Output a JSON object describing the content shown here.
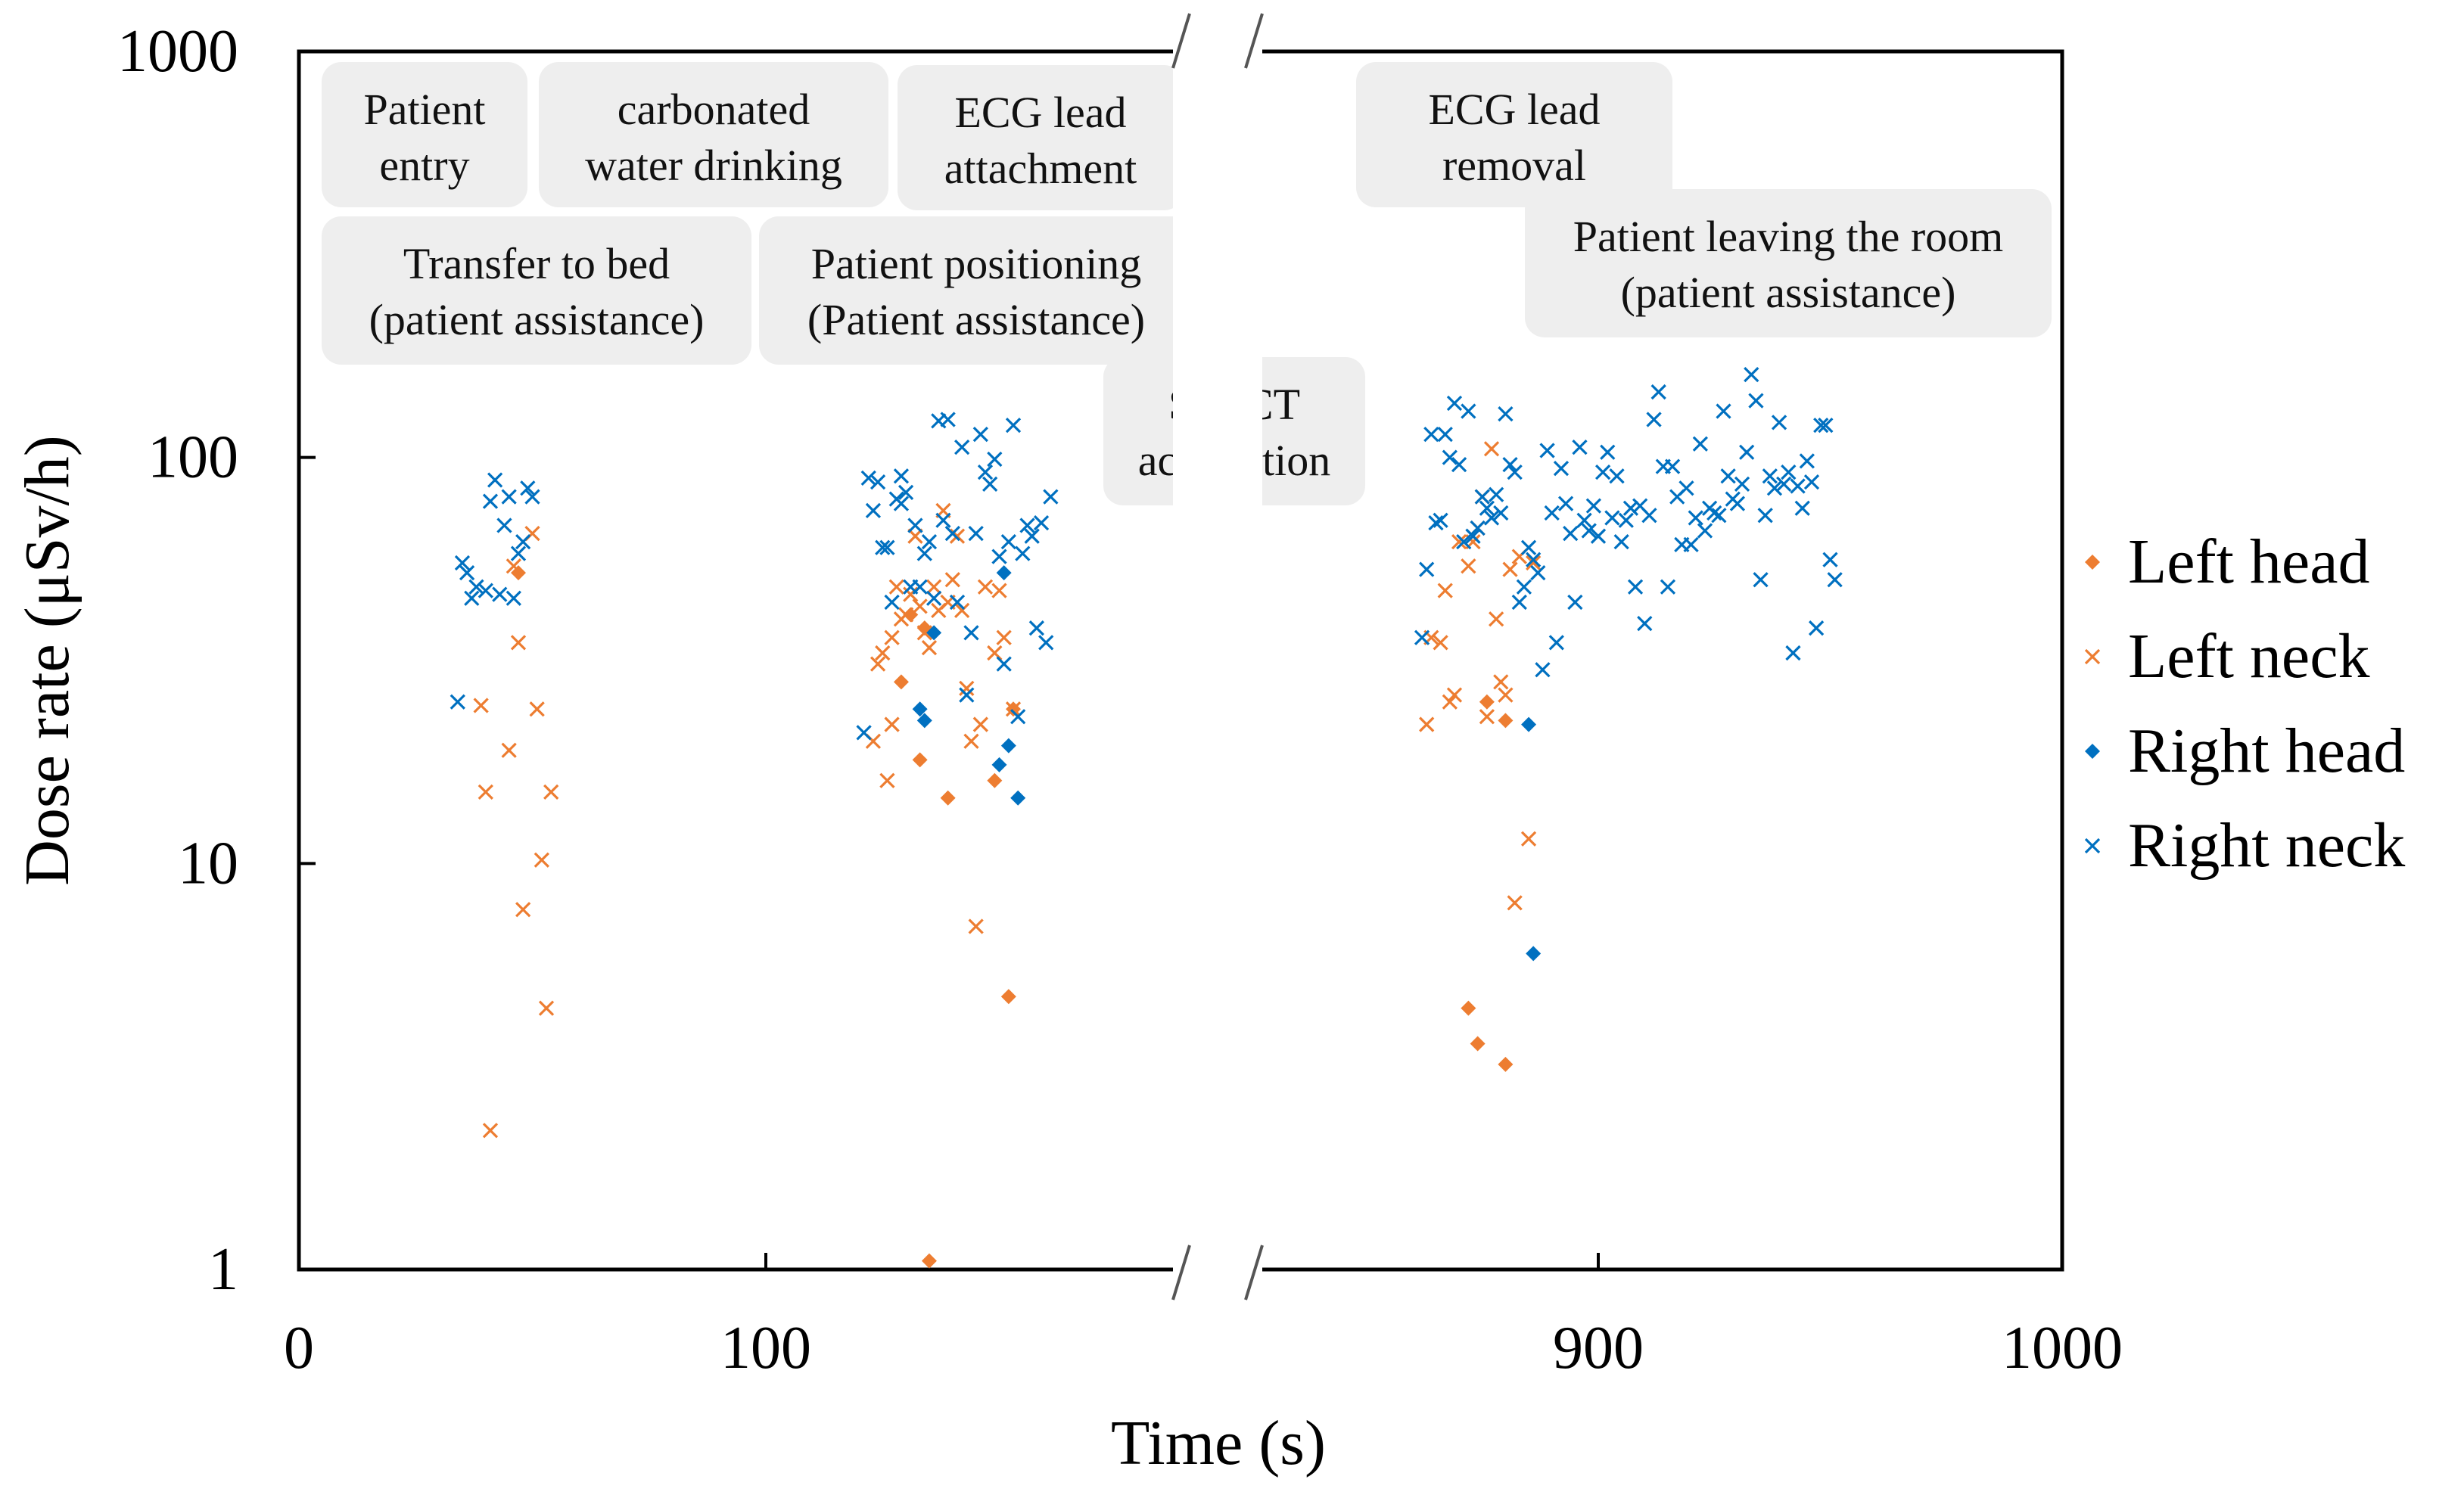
{
  "chart_data": {
    "type": "scatter",
    "xlabel": "Time (s)",
    "ylabel": "Dose rate (μSv/h)",
    "y_scale": "log",
    "ylim": [
      1,
      1000
    ],
    "y_ticks": [
      {
        "value": 1,
        "label": "1"
      },
      {
        "value": 10,
        "label": "10"
      },
      {
        "value": 100,
        "label": "100"
      },
      {
        "value": 1000,
        "label": "1000"
      }
    ],
    "x_broken_axis": {
      "left_segment": [
        0,
        190
      ],
      "right_segment": [
        820,
        1000
      ]
    },
    "x_ticks": [
      {
        "value": 0,
        "label": "0"
      },
      {
        "value": 100,
        "label": "100"
      },
      {
        "value": 900,
        "label": "900"
      },
      {
        "value": 1000,
        "label": "1000"
      }
    ],
    "legend_position": "right",
    "phases": [
      {
        "lines": [
          "Patient",
          "entry"
        ]
      },
      {
        "lines": [
          "carbonated",
          "water drinking"
        ]
      },
      {
        "lines": [
          "ECG lead",
          "attachment"
        ]
      },
      {
        "lines": [
          "Transfer to bed",
          "(patient assistance)"
        ]
      },
      {
        "lines": [
          "Patient positioning",
          "(Patient assistance)"
        ]
      },
      {
        "lines": [
          "SPECT",
          "acquisition"
        ]
      },
      {
        "lines": [
          "ECG lead",
          "removal"
        ]
      },
      {
        "lines": [
          "Patient leaving the room",
          "(patient assistance)"
        ]
      }
    ],
    "series": [
      {
        "name": "Left head",
        "marker": "diamond",
        "color": "#ED7D31",
        "points": [
          [
            47,
            52
          ],
          [
            129,
            28
          ],
          [
            131,
            41
          ],
          [
            133,
            18
          ],
          [
            134,
            38
          ],
          [
            135,
            1.05
          ],
          [
            139,
            14.5
          ],
          [
            149,
            16
          ],
          [
            152,
            4.7
          ],
          [
            153,
            24
          ],
          [
            872,
            4.4
          ],
          [
            874,
            3.6
          ],
          [
            876,
            25
          ],
          [
            880,
            22.5
          ],
          [
            880,
            3.2
          ]
        ]
      },
      {
        "name": "Left neck",
        "marker": "x",
        "color": "#ED7D31",
        "points": [
          [
            39,
            24.5
          ],
          [
            40,
            15
          ],
          [
            41,
            2.2
          ],
          [
            45,
            19
          ],
          [
            46,
            54
          ],
          [
            47,
            35
          ],
          [
            48,
            7.7
          ],
          [
            50,
            65
          ],
          [
            51,
            24
          ],
          [
            52,
            10.2
          ],
          [
            53,
            4.4
          ],
          [
            54,
            15
          ],
          [
            123,
            20
          ],
          [
            124,
            31
          ],
          [
            125,
            33
          ],
          [
            126,
            16
          ],
          [
            127,
            36
          ],
          [
            127,
            22
          ],
          [
            128,
            48
          ],
          [
            129,
            40
          ],
          [
            130,
            41
          ],
          [
            131,
            46
          ],
          [
            132,
            64
          ],
          [
            133,
            43
          ],
          [
            134,
            37
          ],
          [
            135,
            34
          ],
          [
            136,
            48
          ],
          [
            137,
            42
          ],
          [
            138,
            74
          ],
          [
            139,
            44
          ],
          [
            140,
            50
          ],
          [
            141,
            64
          ],
          [
            142,
            42
          ],
          [
            143,
            27
          ],
          [
            144,
            20
          ],
          [
            145,
            7
          ],
          [
            146,
            22
          ],
          [
            147,
            48
          ],
          [
            149,
            33
          ],
          [
            150,
            47
          ],
          [
            151,
            36
          ],
          [
            153,
            24
          ],
          [
            863,
            22
          ],
          [
            864,
            36
          ],
          [
            866,
            35
          ],
          [
            867,
            47
          ],
          [
            868,
            25
          ],
          [
            869,
            26
          ],
          [
            870,
            62
          ],
          [
            872,
            54
          ],
          [
            873,
            62
          ],
          [
            874,
            67
          ],
          [
            875,
            80
          ],
          [
            876,
            23
          ],
          [
            877,
            105
          ],
          [
            878,
            40
          ],
          [
            879,
            28
          ],
          [
            880,
            26
          ],
          [
            881,
            53
          ],
          [
            882,
            8
          ],
          [
            883,
            57
          ],
          [
            885,
            11.5
          ],
          [
            886,
            55
          ]
        ]
      },
      {
        "name": "Right head",
        "marker": "diamond",
        "color": "#0070C0",
        "points": [
          [
            133,
            24
          ],
          [
            134,
            22.5
          ],
          [
            136,
            37
          ],
          [
            150,
            17.5
          ],
          [
            151,
            52
          ],
          [
            152,
            19.5
          ],
          [
            154,
            14.5
          ],
          [
            885,
            22
          ],
          [
            886,
            6
          ]
        ]
      },
      {
        "name": "Right neck",
        "marker": "x",
        "color": "#0070C0",
        "points": [
          [
            34,
            25
          ],
          [
            35,
            55
          ],
          [
            36,
            52
          ],
          [
            37,
            45
          ],
          [
            38,
            48
          ],
          [
            40,
            47
          ],
          [
            41,
            78
          ],
          [
            42,
            88
          ],
          [
            43,
            46
          ],
          [
            44,
            68
          ],
          [
            45,
            80
          ],
          [
            46,
            45
          ],
          [
            47,
            58
          ],
          [
            48,
            62
          ],
          [
            49,
            84
          ],
          [
            50,
            80
          ],
          [
            121,
            21
          ],
          [
            122,
            89
          ],
          [
            123,
            74
          ],
          [
            124,
            87
          ],
          [
            125,
            60
          ],
          [
            126,
            60
          ],
          [
            127,
            44
          ],
          [
            128,
            79
          ],
          [
            129,
            90
          ],
          [
            129,
            77
          ],
          [
            130,
            82
          ],
          [
            131,
            48
          ],
          [
            132,
            68
          ],
          [
            133,
            48
          ],
          [
            134,
            58
          ],
          [
            135,
            62
          ],
          [
            136,
            45
          ],
          [
            137,
            123
          ],
          [
            138,
            70
          ],
          [
            139,
            124
          ],
          [
            140,
            65
          ],
          [
            141,
            44
          ],
          [
            142,
            106
          ],
          [
            143,
            26
          ],
          [
            144,
            37
          ],
          [
            145,
            65
          ],
          [
            146,
            114
          ],
          [
            147,
            92
          ],
          [
            148,
            86
          ],
          [
            149,
            99
          ],
          [
            150,
            57
          ],
          [
            151,
            31
          ],
          [
            152,
            62
          ],
          [
            153,
            120
          ],
          [
            154,
            23
          ],
          [
            155,
            58
          ],
          [
            156,
            68
          ],
          [
            157,
            64
          ],
          [
            158,
            38
          ],
          [
            159,
            69
          ],
          [
            160,
            35
          ],
          [
            161,
            80
          ],
          [
            862,
            36
          ],
          [
            863,
            53
          ],
          [
            864,
            114
          ],
          [
            865,
            69
          ],
          [
            866,
            70
          ],
          [
            867,
            114
          ],
          [
            868,
            100
          ],
          [
            869,
            136
          ],
          [
            870,
            96
          ],
          [
            871,
            62
          ],
          [
            872,
            130
          ],
          [
            873,
            64
          ],
          [
            874,
            67
          ],
          [
            875,
            80
          ],
          [
            876,
            75
          ],
          [
            877,
            71
          ],
          [
            878,
            81
          ],
          [
            879,
            73
          ],
          [
            880,
            128
          ],
          [
            881,
            96
          ],
          [
            882,
            92
          ],
          [
            883,
            44
          ],
          [
            884,
            48
          ],
          [
            885,
            60
          ],
          [
            886,
            56
          ],
          [
            887,
            52
          ],
          [
            888,
            30
          ],
          [
            889,
            104
          ],
          [
            890,
            73
          ],
          [
            891,
            35
          ],
          [
            892,
            94
          ],
          [
            893,
            77
          ],
          [
            894,
            65
          ],
          [
            895,
            44
          ],
          [
            896,
            106
          ],
          [
            897,
            70
          ],
          [
            898,
            66
          ],
          [
            899,
            76
          ],
          [
            900,
            64
          ],
          [
            901,
            92
          ],
          [
            902,
            103
          ],
          [
            903,
            71
          ],
          [
            904,
            90
          ],
          [
            905,
            62
          ],
          [
            906,
            70
          ],
          [
            907,
            75
          ],
          [
            908,
            48
          ],
          [
            909,
            76
          ],
          [
            910,
            39
          ],
          [
            911,
            72
          ],
          [
            912,
            124
          ],
          [
            913,
            145
          ],
          [
            914,
            95
          ],
          [
            915,
            48
          ],
          [
            916,
            95
          ],
          [
            917,
            80
          ],
          [
            918,
            61
          ],
          [
            919,
            84
          ],
          [
            920,
            61
          ],
          [
            921,
            71
          ],
          [
            922,
            108
          ],
          [
            923,
            66
          ],
          [
            924,
            75
          ],
          [
            925,
            73
          ],
          [
            926,
            72
          ],
          [
            927,
            130
          ],
          [
            928,
            90
          ],
          [
            929,
            79
          ],
          [
            930,
            77
          ],
          [
            931,
            86
          ],
          [
            932,
            103
          ],
          [
            933,
            160
          ],
          [
            934,
            138
          ],
          [
            935,
            50
          ],
          [
            936,
            72
          ],
          [
            937,
            90
          ],
          [
            938,
            84
          ],
          [
            939,
            122
          ],
          [
            940,
            86
          ],
          [
            941,
            92
          ],
          [
            942,
            33
          ],
          [
            943,
            85
          ],
          [
            944,
            75
          ],
          [
            945,
            98
          ],
          [
            946,
            87
          ],
          [
            947,
            38
          ],
          [
            948,
            120
          ],
          [
            949,
            120
          ],
          [
            950,
            56
          ],
          [
            951,
            50
          ]
        ]
      }
    ]
  }
}
